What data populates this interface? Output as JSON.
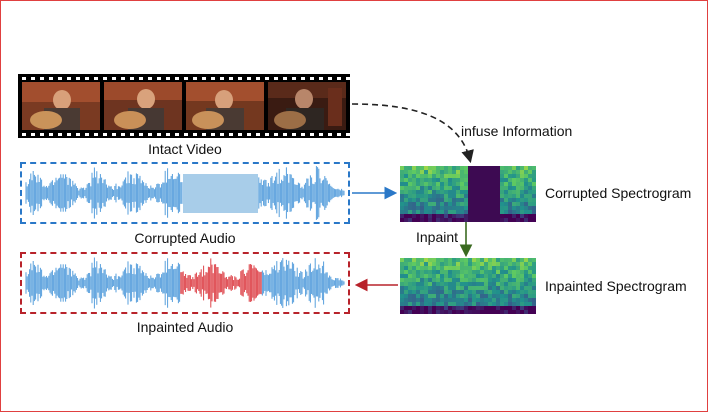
{
  "labels": {
    "intact_video": "Intact Video",
    "corrupted_audio": "Corrupted Audio",
    "inpainted_audio": "Inpainted Audio",
    "infuse_information": "infuse Information",
    "corrupted_spectrogram": "Corrupted Spectrogram",
    "inpainted_spectrogram": "Inpainted Spectrogram",
    "inpaint": "Inpaint"
  },
  "colors": {
    "corrupted_border": "#2a78c8",
    "inpainted_border": "#b8232b",
    "waveform": "#3a8fd6",
    "inpainted_segment": "#d8232a",
    "mask": "#a8cde9",
    "spectrogram_mask": "#3d0a52",
    "frame_border": "#e04040"
  }
}
